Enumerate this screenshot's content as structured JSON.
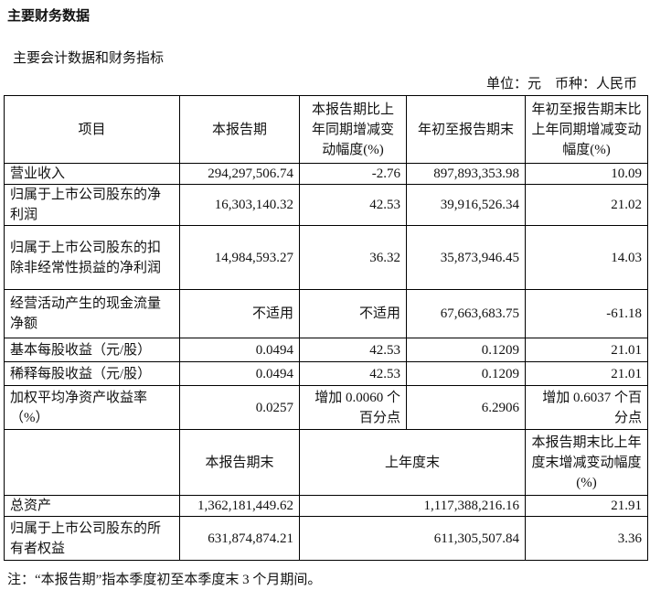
{
  "title": "主要财务数据",
  "subtitle": "主要会计数据和财务指标",
  "unit": "单位：元　币种：人民币",
  "header1": [
    "项目",
    "本报告期",
    "本报告期比上年同期增减变动幅度(%)",
    "年初至报告期末",
    "年初至报告期末比上年同期增减变动幅度(%)"
  ],
  "rows1": [
    {
      "item": "营业收入",
      "cur": "294,297,506.74",
      "chg": "-2.76",
      "ytd": "897,893,353.98",
      "ytdchg": "10.09"
    },
    {
      "item": "归属于上市公司股东的净利润",
      "cur": "16,303,140.32",
      "chg": "42.53",
      "ytd": "39,916,526.34",
      "ytdchg": "21.02"
    },
    {
      "item": "归属于上市公司股东的扣除非经常性损益的净利润",
      "cur": "14,984,593.27",
      "chg": "36.32",
      "ytd": "35,873,946.45",
      "ytdchg": "14.03"
    },
    {
      "item": "经营活动产生的现金流量净额",
      "cur": "不适用",
      "chg": "不适用",
      "ytd": "67,663,683.75",
      "ytdchg": "-61.18"
    },
    {
      "item": "基本每股收益（元/股）",
      "cur": "0.0494",
      "chg": "42.53",
      "ytd": "0.1209",
      "ytdchg": "21.01"
    },
    {
      "item": "稀释每股收益（元/股）",
      "cur": "0.0494",
      "chg": "42.53",
      "ytd": "0.1209",
      "ytdchg": "21.01"
    },
    {
      "item": "加权平均净资产收益率（%）",
      "cur": "0.0257",
      "chg": "增加 0.0060 个百分点",
      "ytd": "6.2906",
      "ytdchg": "增加 0.6037 个百分点"
    }
  ],
  "header2": [
    "",
    "本报告期末",
    "上年度末",
    "本报告期末比上年度末增减变动幅度(%)"
  ],
  "rows2": [
    {
      "item": "总资产",
      "cur": "1,362,181,449.62",
      "prev": "1,117,388,216.16",
      "chg": "21.91"
    },
    {
      "item": "归属于上市公司股东的所有者权益",
      "cur": "631,874,874.21",
      "prev": "611,305,507.84",
      "chg": "3.36"
    }
  ],
  "note": "注：“本报告期”指本季度初至本季度末 3 个月期间。"
}
